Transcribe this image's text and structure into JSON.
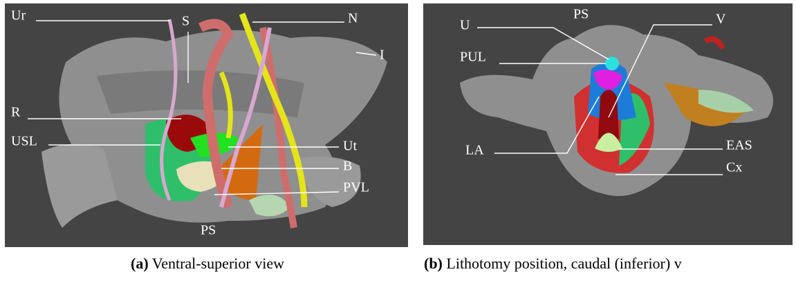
{
  "figure": {
    "panels": [
      {
        "labels": [
          "Ur",
          "S",
          "N",
          "I",
          "R",
          "USL",
          "Ut",
          "B",
          "PVL",
          "PS"
        ],
        "caption": {
          "tag": "(a)",
          "text": "Ventral-superior view"
        }
      },
      {
        "labels": [
          "U",
          "PS",
          "V",
          "PUL",
          "LA",
          "EAS",
          "Cx"
        ],
        "caption": {
          "tag": "(b)",
          "text": "Lithotomy position, caudal (inferior) v"
        }
      }
    ]
  }
}
